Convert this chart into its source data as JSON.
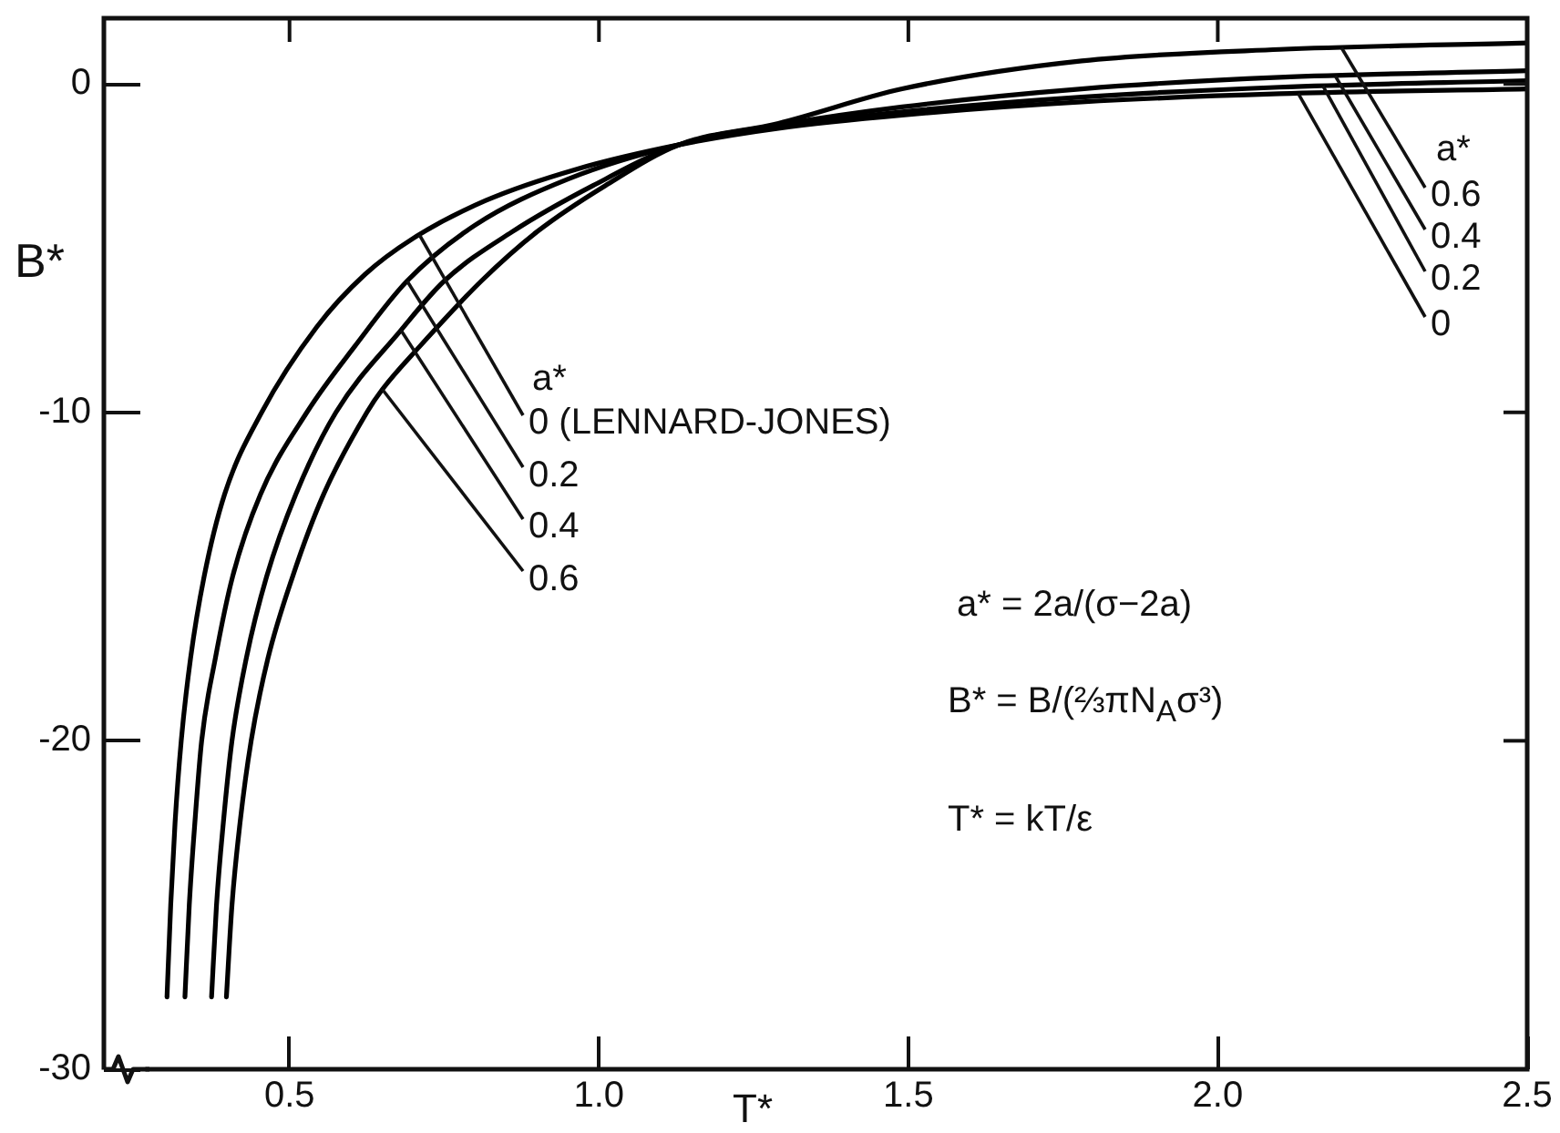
{
  "chart_data": {
    "type": "line",
    "xlabel": "T*",
    "ylabel": "B*",
    "xlim": [
      0.2,
      2.5
    ],
    "xticks": [
      0.5,
      {
        "value": 1,
        "label": "1.0"
      },
      1.5,
      {
        "value": 2,
        "label": "2.0"
      },
      2.5
    ],
    "ylim": [
      -30,
      2
    ],
    "yticks": [
      0,
      -10,
      -20,
      -30
    ],
    "marker": "none",
    "line_style": "solid",
    "series": [
      {
        "color": "#000000",
        "x": [
          0.302,
          0.308,
          0.315,
          0.325,
          0.34,
          0.362,
          0.395,
          0.455,
          0.544,
          0.622,
          0.7,
          0.817,
          0.963,
          1.13,
          1.29,
          1.49,
          1.78,
          2.1,
          2.5
        ],
        "values": [
          -27.8,
          -25,
          -22.5,
          -20,
          -17.5,
          -15,
          -12.5,
          -10,
          -7.4,
          -5.8,
          -4.7,
          -3.55,
          -2.6,
          -1.85,
          -1.35,
          -0.95,
          -0.55,
          -0.3,
          -0.15
        ]
      },
      {
        "color": "#000000",
        "x": [
          0.331,
          0.338,
          0.347,
          0.358,
          0.38,
          0.408,
          0.453,
          0.528,
          0.605,
          0.69,
          0.8,
          0.95,
          1.13,
          1.29,
          1.49,
          1.78,
          2.1,
          2.5
        ],
        "values": [
          -27.8,
          -25,
          -22.5,
          -20,
          -17.5,
          -15,
          -12.5,
          -10,
          -8,
          -6,
          -4.3,
          -2.9,
          -1.85,
          -1.3,
          -0.85,
          -0.4,
          -0.1,
          0.1
        ]
      },
      {
        "color": "#000000",
        "x": [
          0.374,
          0.382,
          0.393,
          0.407,
          0.43,
          0.463,
          0.51,
          0.575,
          0.68,
          0.75,
          0.86,
          0.99,
          1.13,
          1.29,
          1.49,
          1.78,
          2.1,
          2.5
        ],
        "values": [
          -27.8,
          -25,
          -22.5,
          -20,
          -17.5,
          -15,
          -12.5,
          -10,
          -7.5,
          -6,
          -4.5,
          -3.1,
          -1.85,
          -1.25,
          -0.7,
          -0.15,
          0.2,
          0.4
        ]
      },
      {
        "color": "#000000",
        "x": [
          0.398,
          0.407,
          0.42,
          0.438,
          0.465,
          0.505,
          0.555,
          0.625,
          0.65,
          0.71,
          0.81,
          0.9,
          1.01,
          1.13,
          1.29,
          1.49,
          1.78,
          2.1,
          2.5
        ],
        "values": [
          -27.8,
          -25,
          -22.5,
          -20,
          -17.5,
          -15,
          -12.5,
          -10,
          -9.3,
          -8,
          -6,
          -4.5,
          -3.1,
          -1.85,
          -1.2,
          -0.15,
          0.7,
          1.05,
          1.25
        ]
      }
    ],
    "annotations": [
      "a*",
      {
        "text": "0 (LENNARD-JONES)",
        "x": 0.71,
        "y": -4.6
      },
      {
        "text": "0.2",
        "x": 0.69,
        "y": -6
      },
      {
        "text": "0.4",
        "x": 0.68,
        "y": -7.5
      },
      {
        "text": "0.6",
        "x": 0.65,
        "y": -9.3
      },
      "a*",
      {
        "text": "0.6",
        "x": 2.2,
        "y": 1.1
      },
      {
        "text": "0.4",
        "x": 2.19,
        "y": 0.24
      },
      {
        "text": "0.2",
        "x": 2.17,
        "y": -0.06
      },
      {
        "text": "0",
        "x": 2.13,
        "y": -0.29
      },
      "a* = 2a/(σ−2a)",
      "B* = B/(⅔πN$_{A}$σ³)",
      "T* = kT/ε"
    ]
  }
}
